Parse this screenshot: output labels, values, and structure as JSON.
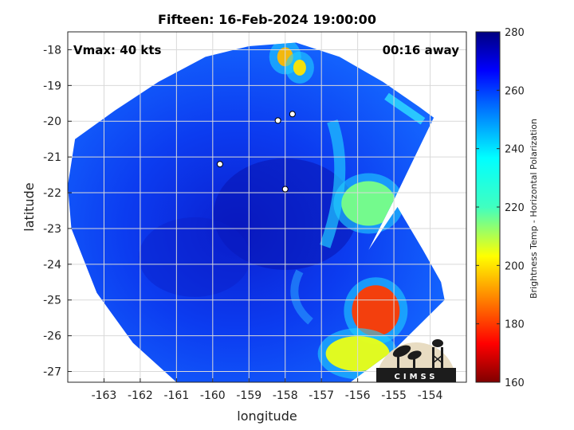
{
  "title": "Fifteen: 16-Feb-2024 19:00:00",
  "annotations": {
    "vmax": "Vmax: 40 kts",
    "away": "00:16 away"
  },
  "colorbar": {
    "label": "Brightness Temp - Horizontal Polarization",
    "ticks": [
      160,
      180,
      200,
      220,
      240,
      260,
      280
    ],
    "range": [
      160,
      280
    ],
    "colormap": "jet"
  },
  "logo_text": "CIMSS",
  "chart_data": {
    "type": "heatmap",
    "title": "Fifteen: 16-Feb-2024 19:00:00",
    "xlabel": "longitude",
    "ylabel": "latitude",
    "xlim": [
      -164,
      -153
    ],
    "ylim": [
      -27.3,
      -17.5
    ],
    "xticks": [
      -163,
      -162,
      -161,
      -160,
      -159,
      -158,
      -157,
      -156,
      -155,
      -154
    ],
    "yticks": [
      -18,
      -19,
      -20,
      -21,
      -22,
      -23,
      -24,
      -25,
      -26,
      -27
    ],
    "grid": true,
    "colorbar_label": "Brightness Temp - Horizontal Polarization",
    "clim": [
      160,
      280
    ],
    "storm_track_points": [
      {
        "lon": -159.8,
        "lat": -21.2
      },
      {
        "lon": -158.2,
        "lat": -19.98
      },
      {
        "lon": -157.8,
        "lat": -19.8
      },
      {
        "lon": -158.0,
        "lat": -21.9
      }
    ],
    "warm_features": [
      {
        "lon": -158.0,
        "lat": -18.2,
        "tb": 195
      },
      {
        "lon": -157.6,
        "lat": -18.5,
        "tb": 200
      },
      {
        "lon": -155.7,
        "lat": -22.3,
        "tb": 215
      },
      {
        "lon": -155.5,
        "lat": -25.3,
        "tb": 180
      },
      {
        "lon": -156.0,
        "lat": -26.5,
        "tb": 205
      }
    ]
  }
}
